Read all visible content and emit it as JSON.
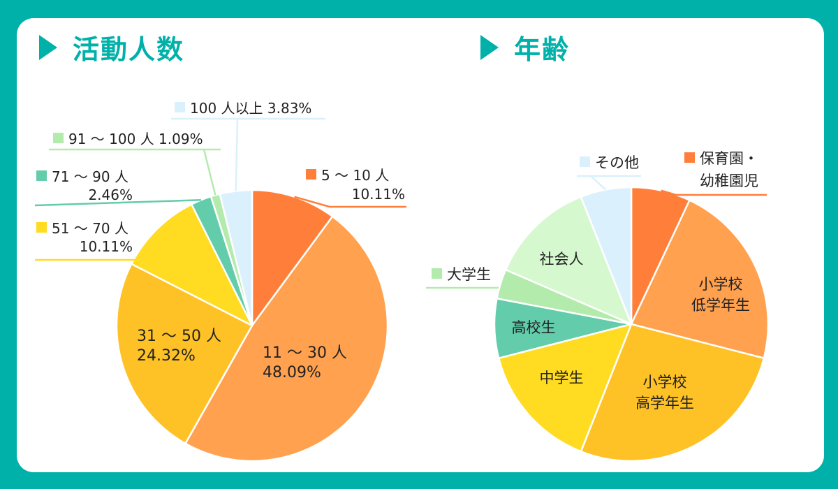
{
  "colors": {
    "background": "#00b1aa",
    "card": "#ffffff",
    "accent": "#00b1aa",
    "text": "#222222"
  },
  "chart_data": [
    {
      "type": "pie",
      "title": "活動人数",
      "slices": [
        {
          "label": "5 〜 10 人",
          "value": 10.11,
          "value_label": "10.11%",
          "color": "#ff7f3a"
        },
        {
          "label": "11 〜 30 人",
          "value": 48.09,
          "value_label": "48.09%",
          "color": "#ffa14f"
        },
        {
          "label": "31 〜 50 人",
          "value": 24.32,
          "value_label": "24.32%",
          "color": "#ffc226"
        },
        {
          "label": "51 〜 70 人",
          "value": 10.11,
          "value_label": "10.11%",
          "color": "#ffdb22"
        },
        {
          "label": "71 〜 90 人",
          "value": 2.46,
          "value_label": "2.46%",
          "color": "#63ccaa"
        },
        {
          "label": "91 〜 100 人",
          "value": 1.09,
          "value_label": "1.09%",
          "color": "#b3ebad"
        },
        {
          "label": "100 人以上",
          "value": 3.83,
          "value_label": "3.83%",
          "color": "#daf0fd"
        }
      ]
    },
    {
      "type": "pie",
      "title": "年齢",
      "slices": [
        {
          "label": "保育園・幼稚園児",
          "label_lines": [
            "保育園・",
            "幼稚園児"
          ],
          "value": 7,
          "color": "#ff7f3a"
        },
        {
          "label": "小学校低学年生",
          "label_lines": [
            "小学校",
            "低学年生"
          ],
          "value": 22,
          "color": "#ffa14f"
        },
        {
          "label": "小学校高学年生",
          "label_lines": [
            "小学校",
            "高学年生"
          ],
          "value": 27,
          "color": "#ffc226"
        },
        {
          "label": "中学生",
          "label_lines": [
            "中学生"
          ],
          "value": 15,
          "color": "#ffdb22"
        },
        {
          "label": "高校生",
          "label_lines": [
            "高校生"
          ],
          "value": 7,
          "color": "#63ccaa"
        },
        {
          "label": "大学生",
          "label_lines": [
            "大学生"
          ],
          "value": 3.5,
          "color": "#b3ebad"
        },
        {
          "label": "社会人",
          "label_lines": [
            "社会人"
          ],
          "value": 12.5,
          "color": "#d6f8ce"
        },
        {
          "label": "その他",
          "label_lines": [
            "その他"
          ],
          "value": 6,
          "color": "#daf0fd"
        }
      ]
    }
  ]
}
